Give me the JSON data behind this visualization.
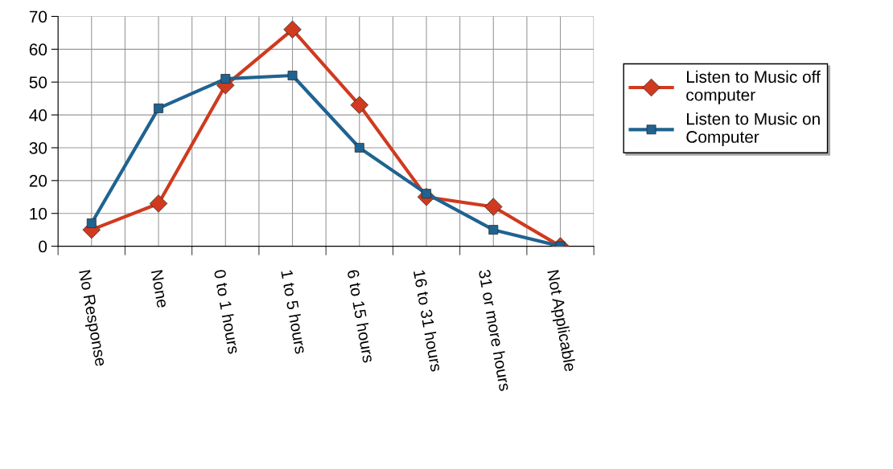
{
  "chart_data": {
    "type": "line",
    "categories": [
      "No Response",
      "None",
      "0 to 1 hours",
      "1 to 5 hours",
      "6 to 15 hours",
      "16 to 31 hours",
      "31 or more hours",
      "Not Applicable"
    ],
    "series": [
      {
        "name": "Listen to Music off computer",
        "color": "#d03a1e",
        "marker": "diamond",
        "values": [
          5,
          13,
          49,
          66,
          43,
          15,
          12,
          0
        ]
      },
      {
        "name": "Listen to Music on Computer",
        "color": "#1f6391",
        "marker": "square",
        "values": [
          7,
          42,
          51,
          52,
          30,
          16,
          5,
          0
        ]
      }
    ],
    "ylim": [
      0,
      70
    ],
    "yticks": [
      0,
      10,
      20,
      30,
      40,
      50,
      60,
      70
    ],
    "grid": true,
    "legend": "right",
    "line_style": "solid"
  }
}
